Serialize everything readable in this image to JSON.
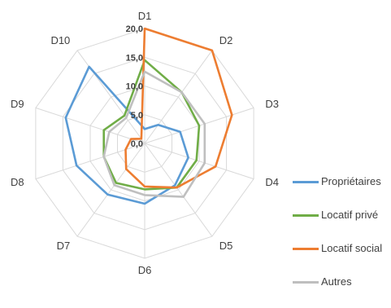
{
  "chart_data": {
    "type": "radar",
    "categories": [
      "D1",
      "D2",
      "D3",
      "D4",
      "D5",
      "D6",
      "D7",
      "D8",
      "D9",
      "D10"
    ],
    "rlim": [
      0,
      20
    ],
    "ticks": [
      "0,0",
      "5,0",
      "10,0",
      "15,0",
      "20,0"
    ],
    "tick_values": [
      0,
      5,
      10,
      15,
      20
    ],
    "grid": true,
    "legend_position": "right",
    "series": [
      {
        "name": "Propriétaires",
        "color": "#5B9BD5",
        "values": [
          2.5,
          4.0,
          6.5,
          8.0,
          9.0,
          10.5,
          11.0,
          12.5,
          14.5,
          16.5
        ]
      },
      {
        "name": "Locatif privé",
        "color": "#70AD47",
        "values": [
          14.5,
          11.0,
          10.0,
          9.5,
          9.5,
          8.0,
          8.5,
          7.5,
          7.5,
          6.0
        ]
      },
      {
        "name": "Locatif social",
        "color": "#ED7D31",
        "values": [
          20.0,
          20.0,
          16.0,
          13.0,
          9.5,
          7.5,
          5.5,
          3.5,
          2.5,
          1.0
        ]
      },
      {
        "name": "Autres",
        "color": "#BFBFBF",
        "values": [
          12.5,
          11.0,
          11.0,
          11.0,
          11.5,
          9.0,
          9.0,
          7.5,
          6.5,
          5.5
        ]
      }
    ]
  }
}
